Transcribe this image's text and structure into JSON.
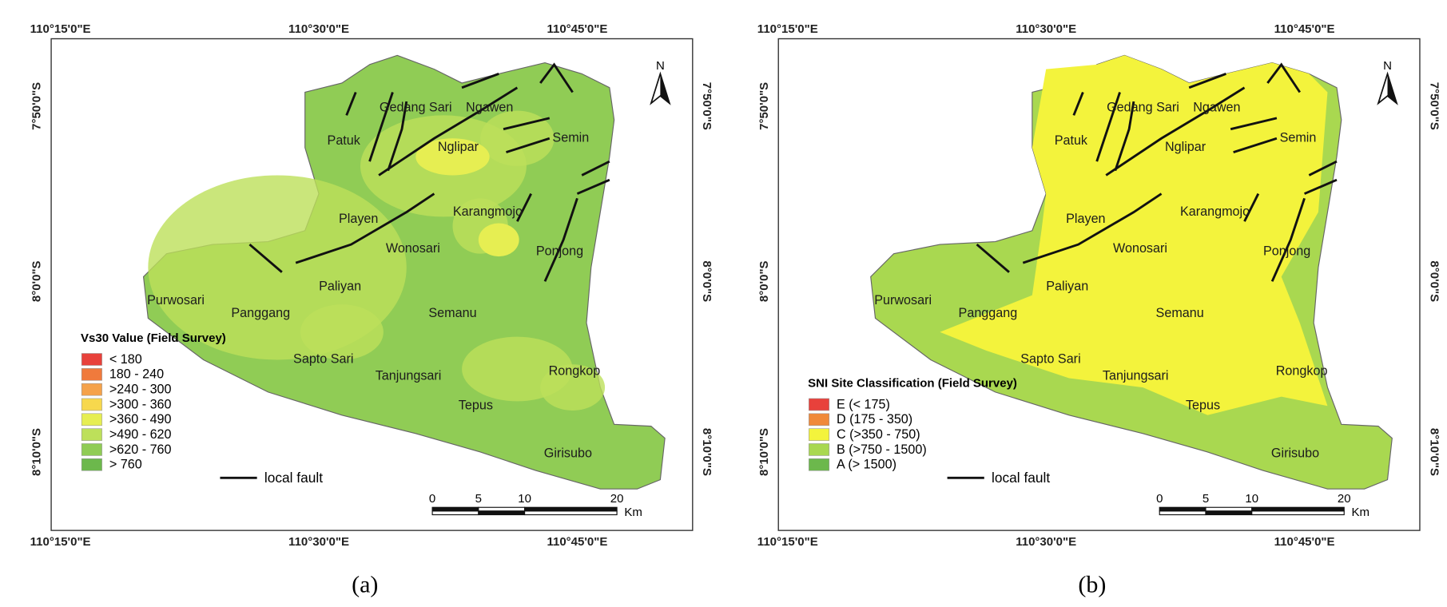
{
  "panels": [
    {
      "caption": "(a)",
      "x_labels": [
        "110°15'0\"E",
        "110°30'0\"E",
        "110°45'0\"E"
      ],
      "y_labels": [
        "7°50'0\"S",
        "8°0'0\"S",
        "8°10'0\"S"
      ],
      "north": "N",
      "places": [
        "Gedang Sari",
        "Ngawen",
        "Patuk",
        "Nglipar",
        "Semin",
        "Karangmojo",
        "Playen",
        "Wonosari",
        "Ponjong",
        "Paliyan",
        "Purwosari",
        "Panggang",
        "Semanu",
        "Sapto Sari",
        "Tanjungsari",
        "Rongkop",
        "Tepus",
        "Girisubo"
      ],
      "legend": {
        "title": "Vs30 Value (Field Survey)",
        "items": [
          {
            "label": "< 180",
            "color": "#e8413b"
          },
          {
            "label": "180 - 240",
            "color": "#f07a3c"
          },
          {
            "label": ">240 - 300",
            "color": "#f5a24a"
          },
          {
            "label": ">300 - 360",
            "color": "#f7d84d"
          },
          {
            "label": ">360 - 490",
            "color": "#e6ee52"
          },
          {
            "label": ">490 - 620",
            "color": "#bde05a"
          },
          {
            "label": ">620 - 760",
            "color": "#90cc55"
          },
          {
            "label": "> 760",
            "color": "#6cb84c"
          }
        ]
      },
      "fault_label": "local fault",
      "scale": {
        "ticks": [
          0,
          5,
          10,
          20
        ],
        "unit": "Km"
      }
    },
    {
      "caption": "(b)",
      "x_labels": [
        "110°15'0\"E",
        "110°30'0\"E",
        "110°45'0\"E"
      ],
      "y_labels": [
        "7°50'0\"S",
        "8°0'0\"S",
        "8°10'0\"S"
      ],
      "north": "N",
      "places": [
        "Gedang Sari",
        "Ngawen",
        "Patuk",
        "Nglipar",
        "Semin",
        "Karangmojo",
        "Playen",
        "Wonosari",
        "Ponjong",
        "Paliyan",
        "Purwosari",
        "Panggang",
        "Semanu",
        "Sapto Sari",
        "Tanjungsari",
        "Rongkop",
        "Tepus",
        "Girisubo"
      ],
      "legend": {
        "title": "SNI Site Classification (Field Survey)",
        "items": [
          {
            "label": "E (< 175)",
            "color": "#e8413b"
          },
          {
            "label": "D (175 - 350)",
            "color": "#f08a3a"
          },
          {
            "label": "C (>350 - 750)",
            "color": "#f3f33c"
          },
          {
            "label": "B (>750 - 1500)",
            "color": "#a9d850"
          },
          {
            "label": "A (> 1500)",
            "color": "#6cb84c"
          }
        ]
      },
      "fault_label": "local fault",
      "scale": {
        "ticks": [
          0,
          5,
          10,
          20
        ],
        "unit": "Km"
      }
    }
  ]
}
